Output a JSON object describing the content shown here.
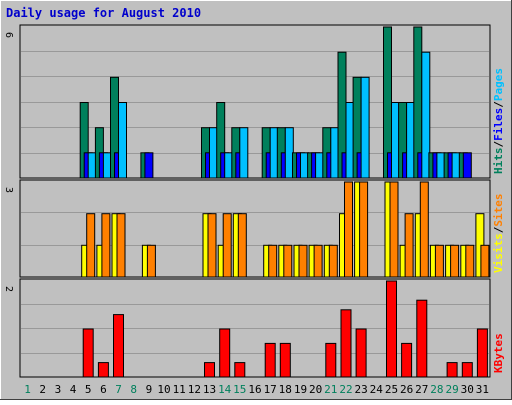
{
  "chart_data": {
    "type": "bar",
    "title": "Daily usage for August 2010",
    "days": [
      "1",
      "2",
      "3",
      "4",
      "5",
      "6",
      "7",
      "8",
      "9",
      "10",
      "11",
      "12",
      "13",
      "14",
      "15",
      "16",
      "17",
      "18",
      "19",
      "20",
      "21",
      "22",
      "23",
      "24",
      "25",
      "26",
      "27",
      "28",
      "29",
      "30",
      "31"
    ],
    "weekend_days": [
      "1",
      "7",
      "8",
      "14",
      "15",
      "21",
      "22",
      "28",
      "29"
    ],
    "colors": {
      "background": "#c0c0c0",
      "plot": "#c0c0c0",
      "grid": "#999999",
      "title": "#0000cc",
      "day_label": "#000000",
      "weekend_label": "#00805c",
      "hits": "#00805c",
      "files": "#0000ff",
      "pages": "#00c0ff",
      "visits": "#ffff00",
      "sites": "#ff8000",
      "kbytes": "#ff0000"
    },
    "panels": [
      {
        "id": "hits-files-pages",
        "ylim": [
          0,
          6
        ],
        "max_label": "6",
        "legend": [
          {
            "text": "Hits",
            "color": "#00805c"
          },
          {
            "text": "/",
            "color": "#000000"
          },
          {
            "text": "Files",
            "color": "#0000ff"
          },
          {
            "text": "/",
            "color": "#000000"
          },
          {
            "text": "Pages",
            "color": "#00c0ff"
          }
        ],
        "series": [
          {
            "name": "Hits",
            "color": "#00805c",
            "values": [
              0,
              0,
              0,
              0,
              3,
              2,
              4,
              0,
              1,
              0,
              0,
              0,
              2,
              3,
              2,
              0,
              2,
              2,
              1,
              1,
              2,
              5,
              4,
              0,
              6,
              3,
              6,
              1,
              1,
              1,
              0
            ]
          },
          {
            "name": "Files",
            "color": "#0000ff",
            "values": [
              0,
              0,
              0,
              0,
              1,
              1,
              1,
              0,
              1,
              0,
              0,
              0,
              1,
              1,
              1,
              0,
              1,
              1,
              1,
              1,
              1,
              1,
              1,
              0,
              1,
              1,
              1,
              1,
              1,
              1,
              0
            ]
          },
          {
            "name": "Pages",
            "color": "#00c0ff",
            "values": [
              0,
              0,
              0,
              0,
              1,
              1,
              3,
              0,
              0,
              0,
              0,
              0,
              2,
              1,
              2,
              0,
              2,
              2,
              1,
              1,
              2,
              3,
              4,
              0,
              3,
              3,
              5,
              1,
              1,
              0,
              0
            ]
          }
        ]
      },
      {
        "id": "visits-sites",
        "ylim": [
          0,
          3
        ],
        "max_label": "3",
        "legend": [
          {
            "text": "Visits",
            "color": "#ffff00"
          },
          {
            "text": "/",
            "color": "#000000"
          },
          {
            "text": "Sites",
            "color": "#ff8000"
          }
        ],
        "series": [
          {
            "name": "Visits",
            "color": "#ffff00",
            "values": [
              0,
              0,
              0,
              0,
              1,
              1,
              2,
              0,
              1,
              0,
              0,
              0,
              2,
              1,
              2,
              0,
              1,
              1,
              1,
              1,
              1,
              2,
              3,
              0,
              3,
              1,
              2,
              1,
              1,
              1,
              2
            ]
          },
          {
            "name": "Sites",
            "color": "#ff8000",
            "values": [
              0,
              0,
              0,
              0,
              2,
              2,
              2,
              0,
              1,
              0,
              0,
              0,
              2,
              2,
              2,
              0,
              1,
              1,
              1,
              1,
              1,
              3,
              3,
              0,
              3,
              2,
              3,
              1,
              1,
              1,
              1
            ]
          }
        ]
      },
      {
        "id": "kbytes",
        "ylim": [
          0,
          2
        ],
        "max_label": "2",
        "legend": [
          {
            "text": "KBytes",
            "color": "#ff0000"
          }
        ],
        "series": [
          {
            "name": "KBytes",
            "color": "#ff0000",
            "values": [
              0,
              0,
              0,
              0,
              1.0,
              0.3,
              1.3,
              0,
              0,
              0,
              0,
              0,
              0.3,
              1.0,
              0.3,
              0,
              0.7,
              0.7,
              0,
              0,
              0.7,
              1.4,
              1.0,
              0,
              2.0,
              0.7,
              1.6,
              0,
              0.3,
              0.3,
              1.0
            ]
          }
        ]
      }
    ]
  }
}
